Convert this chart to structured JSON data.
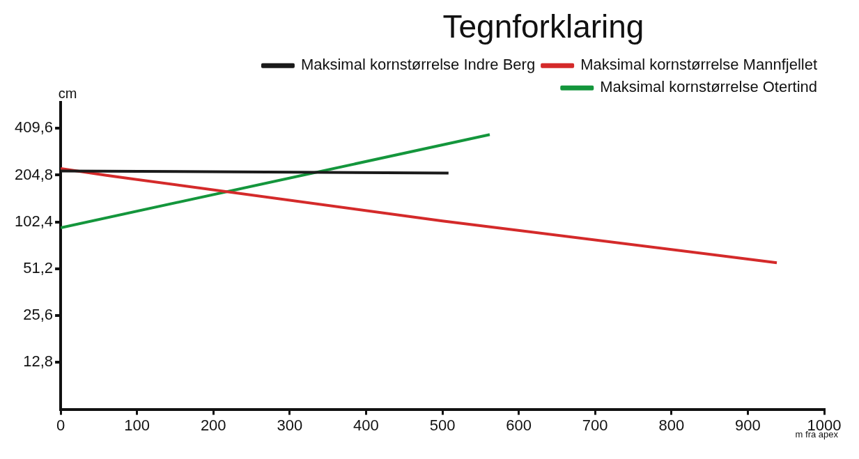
{
  "chart_data": {
    "type": "line",
    "legend_title": "Tegnforklaring",
    "xlabel": "m fra apex",
    "ylabel": "cm",
    "log": "y",
    "grid": false,
    "legend": "top right",
    "marker": "none",
    "line_style": "solid",
    "xlim": [
      0,
      1000
    ],
    "xticks": [
      0,
      100,
      200,
      300,
      400,
      500,
      600,
      700,
      800,
      900,
      1000
    ],
    "ylim": [
      6.4,
      600
    ],
    "yticks": [
      {
        "value": 12.8,
        "label": "12,8"
      },
      {
        "value": 25.6,
        "label": "25,6"
      },
      {
        "value": 51.2,
        "label": "51,2"
      },
      {
        "value": 102.4,
        "label": "102,4"
      },
      {
        "value": 204.8,
        "label": "204,8"
      },
      {
        "value": 409.6,
        "label": "409,6"
      }
    ],
    "series": [
      {
        "name": "Maksimal kornstørrelse Indre Berg",
        "color": "#1a1a1a",
        "x": [
          0,
          508
        ],
        "values": [
          218,
          211
        ]
      },
      {
        "name": "Maksimal kornstørrelse Mannfjellet",
        "color": "#d42a2a",
        "x": [
          0,
          60,
          500,
          938
        ],
        "values": [
          226,
          204,
          104,
          56
        ]
      },
      {
        "name": "Maksimal kornstørrelse Otertind",
        "color": "#14963c",
        "x": [
          0,
          562
        ],
        "values": [
          94,
          373
        ]
      }
    ]
  }
}
